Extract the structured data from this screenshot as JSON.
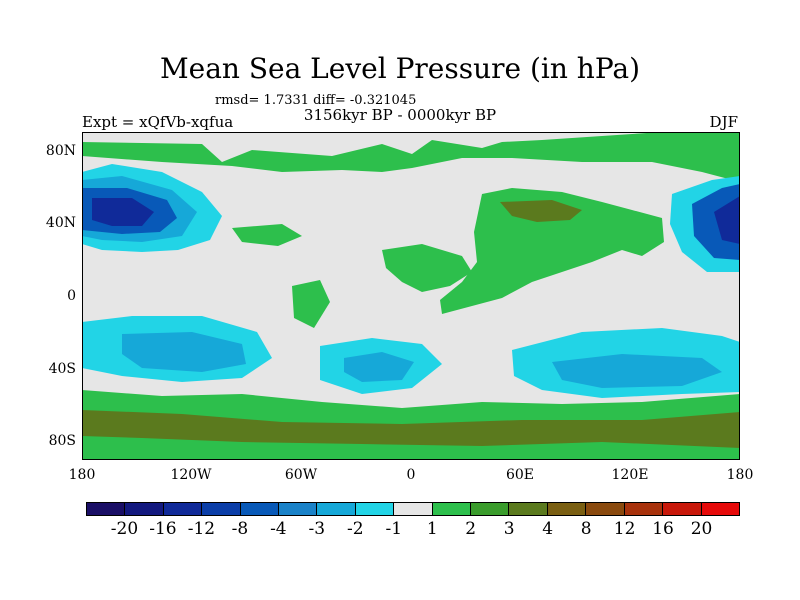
{
  "title": "Mean Sea Level Pressure (in hPa)",
  "stats": "rmsd= 1.7331 diff= -0.321045",
  "experiment": "Expt = xQfVb-xqfua",
  "period": "3156kyr BP - 0000kyr BP",
  "season": "DJF",
  "map": {
    "lat_ticks": [
      "80N",
      "40N",
      "0",
      "40S",
      "80S"
    ],
    "lon_ticks": [
      "180",
      "120W",
      "60W",
      "0",
      "60E",
      "120E",
      "180"
    ]
  },
  "colorbar": {
    "labels": [
      "-20",
      "-16",
      "-12",
      "-8",
      "-4",
      "-3",
      "-2",
      "-1",
      "1",
      "2",
      "3",
      "4",
      "8",
      "12",
      "16",
      "20"
    ],
    "colors": [
      "#1a0f66",
      "#13197f",
      "#102a99",
      "#0b3ea8",
      "#0859b8",
      "#1a82c8",
      "#16a8d8",
      "#22d4e6",
      "#e6e6e6",
      "#2dbf4c",
      "#3a9c2c",
      "#5b7a1e",
      "#7a5f12",
      "#8a4a0e",
      "#a8320c",
      "#c8180a",
      "#e60a0a"
    ]
  }
}
